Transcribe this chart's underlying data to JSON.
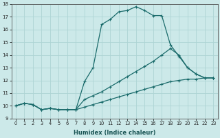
{
  "xlabel": "Humidex (Indice chaleur)",
  "bg_color": "#cce9e9",
  "grid_color": "#aed4d4",
  "line_color": "#1a6b6b",
  "xlim": [
    -0.5,
    23.5
  ],
  "ylim": [
    9,
    18
  ],
  "xticks": [
    0,
    1,
    2,
    3,
    4,
    5,
    6,
    7,
    8,
    9,
    10,
    11,
    12,
    13,
    14,
    15,
    16,
    17,
    18,
    19,
    20,
    21,
    22,
    23
  ],
  "yticks": [
    9,
    10,
    11,
    12,
    13,
    14,
    15,
    16,
    17,
    18
  ],
  "line_main_x": [
    0,
    1,
    2,
    3,
    4,
    5,
    6,
    7,
    8,
    9,
    10,
    11,
    12,
    13,
    14,
    15,
    16,
    17,
    18,
    19,
    20,
    21,
    22,
    23
  ],
  "line_main_y": [
    10.0,
    10.2,
    10.1,
    9.7,
    9.8,
    9.7,
    9.7,
    9.7,
    11.9,
    13.0,
    16.4,
    16.8,
    17.4,
    17.5,
    17.8,
    17.5,
    17.1,
    17.1,
    14.8,
    13.9,
    13.0,
    12.5,
    12.2,
    12.2
  ],
  "line_mid_x": [
    0,
    1,
    2,
    3,
    4,
    5,
    6,
    7,
    8,
    9,
    10,
    11,
    12,
    13,
    14,
    15,
    16,
    17,
    18,
    19,
    20,
    21,
    22,
    23
  ],
  "line_mid_y": [
    10.0,
    10.2,
    10.1,
    9.7,
    9.8,
    9.7,
    9.7,
    9.7,
    10.5,
    10.8,
    11.1,
    11.5,
    11.9,
    12.3,
    12.7,
    13.1,
    13.5,
    14.0,
    14.5,
    14.0,
    13.0,
    12.5,
    12.2,
    12.2
  ],
  "line_low_x": [
    0,
    1,
    2,
    3,
    4,
    5,
    6,
    7,
    8,
    9,
    10,
    11,
    12,
    13,
    14,
    15,
    16,
    17,
    18,
    19,
    20,
    21,
    22,
    23
  ],
  "line_low_y": [
    10.0,
    10.2,
    10.1,
    9.7,
    9.8,
    9.7,
    9.7,
    9.7,
    9.9,
    10.1,
    10.3,
    10.5,
    10.7,
    10.9,
    11.1,
    11.3,
    11.5,
    11.7,
    11.9,
    12.0,
    12.1,
    12.1,
    12.2,
    12.2
  ]
}
